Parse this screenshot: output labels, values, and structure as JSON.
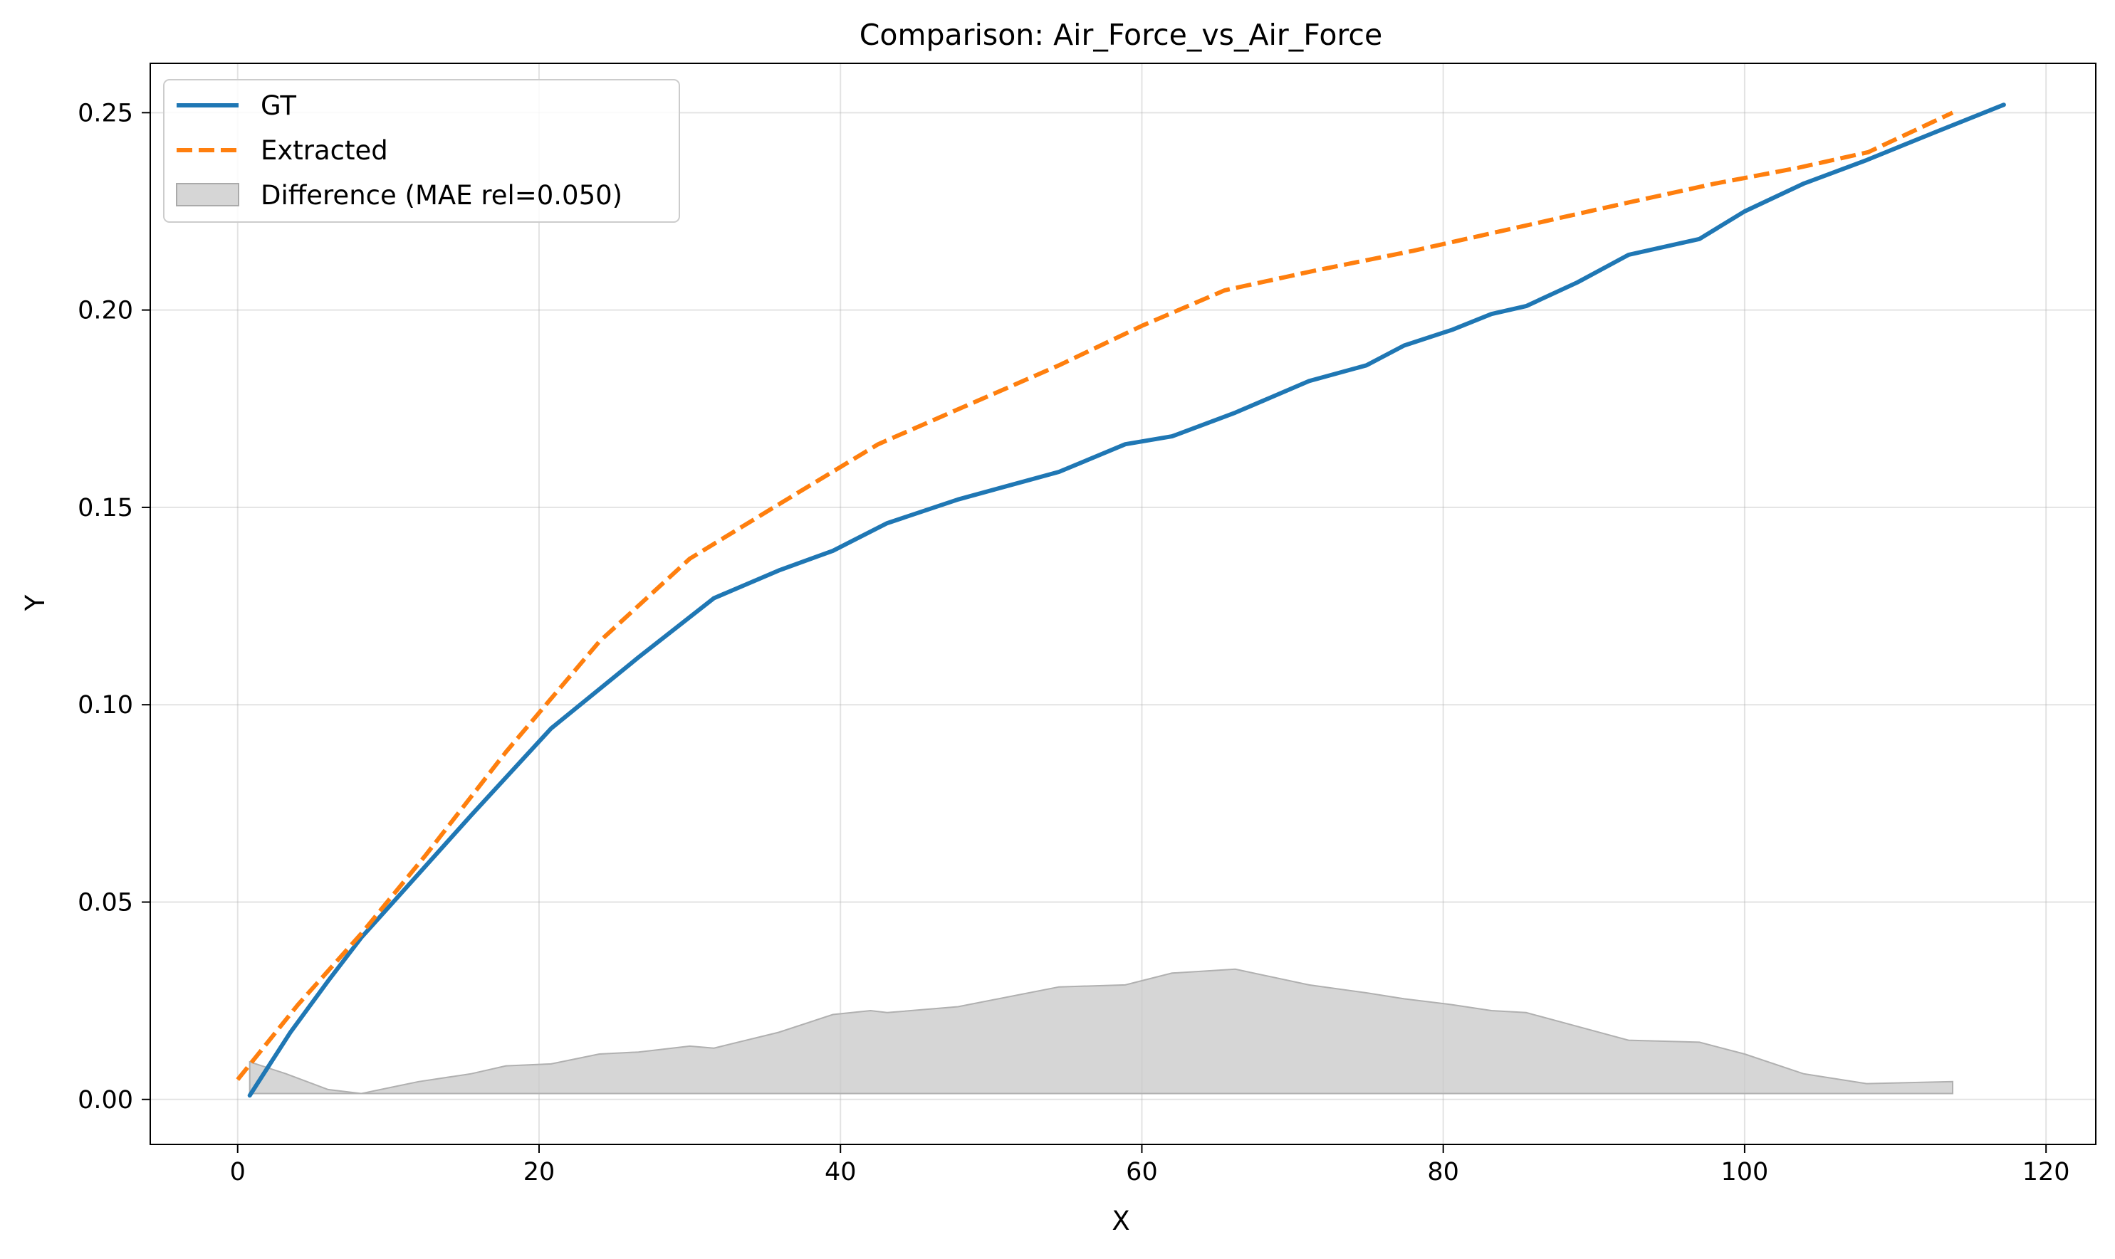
{
  "chart_data": {
    "type": "line",
    "title": "Comparison: Air_Force_vs_Air_Force",
    "xlabel": "X",
    "ylabel": "Y",
    "xlim": [
      -5.8,
      123.3
    ],
    "ylim": [
      -0.0114,
      0.2625
    ],
    "xticks": [
      0,
      20,
      40,
      60,
      80,
      100,
      120
    ],
    "yticks": [
      0.0,
      0.05,
      0.1,
      0.15,
      0.2,
      0.25
    ],
    "ytick_labels": [
      "0.00",
      "0.05",
      "0.10",
      "0.15",
      "0.20",
      "0.25"
    ],
    "grid": true,
    "legend_position": "top-left",
    "series": [
      {
        "name": "GT",
        "style": "solid",
        "color": "#1f77b4",
        "x": [
          0.8,
          3.5,
          6.0,
          8.2,
          11.5,
          15.5,
          20.8,
          26.6,
          31.6,
          35.9,
          39.5,
          43.1,
          47.8,
          54.5,
          58.9,
          62.0,
          66.2,
          71.1,
          74.9,
          77.4,
          80.6,
          83.2,
          85.5,
          88.9,
          92.3,
          97.0,
          100.0,
          103.9,
          108.1,
          112.6,
          117.2
        ],
        "y": [
          0.001,
          0.017,
          0.03,
          0.041,
          0.055,
          0.072,
          0.094,
          0.112,
          0.127,
          0.134,
          0.139,
          0.146,
          0.152,
          0.159,
          0.166,
          0.168,
          0.174,
          0.182,
          0.186,
          0.191,
          0.195,
          0.199,
          0.201,
          0.207,
          0.214,
          0.218,
          0.225,
          0.232,
          0.238,
          0.245,
          0.252
        ]
      },
      {
        "name": "Extracted",
        "style": "dashed",
        "color": "#ff7f0e",
        "x": [
          0.0,
          4.0,
          8.2,
          12.5,
          17.8,
          24.0,
          30.0,
          36.0,
          42.5,
          48.5,
          54.5,
          60.0,
          65.5,
          71.5,
          78.0,
          85.0,
          92.0,
          98.0,
          103.5,
          108.2,
          113.8
        ],
        "y": [
          0.005,
          0.024,
          0.042,
          0.062,
          0.088,
          0.116,
          0.137,
          0.151,
          0.166,
          0.176,
          0.186,
          0.196,
          0.205,
          0.21,
          0.215,
          0.221,
          0.227,
          0.232,
          0.236,
          0.24,
          0.25
        ]
      }
    ],
    "difference": {
      "name": "Difference (MAE rel=0.050)",
      "color": "#c8c8c8",
      "x": [
        0.8,
        3.2,
        6.0,
        8.2,
        12.0,
        15.5,
        17.8,
        20.8,
        24.0,
        26.6,
        30.0,
        31.6,
        35.9,
        39.5,
        42.0,
        43.1,
        47.8,
        54.5,
        58.9,
        62.0,
        66.2,
        71.1,
        74.9,
        77.4,
        80.6,
        83.2,
        85.5,
        88.9,
        92.3,
        97.0,
        100.0,
        103.9,
        108.1,
        113.8
      ],
      "y": [
        0.0095,
        0.0065,
        0.0025,
        0.0015,
        0.0045,
        0.0065,
        0.0085,
        0.009,
        0.0115,
        0.012,
        0.0135,
        0.013,
        0.017,
        0.0215,
        0.0225,
        0.022,
        0.0235,
        0.0285,
        0.029,
        0.032,
        0.033,
        0.029,
        0.027,
        0.0255,
        0.024,
        0.0225,
        0.022,
        0.0185,
        0.015,
        0.0145,
        0.0115,
        0.0065,
        0.004,
        0.0045
      ],
      "baseline": 0.0015
    }
  }
}
